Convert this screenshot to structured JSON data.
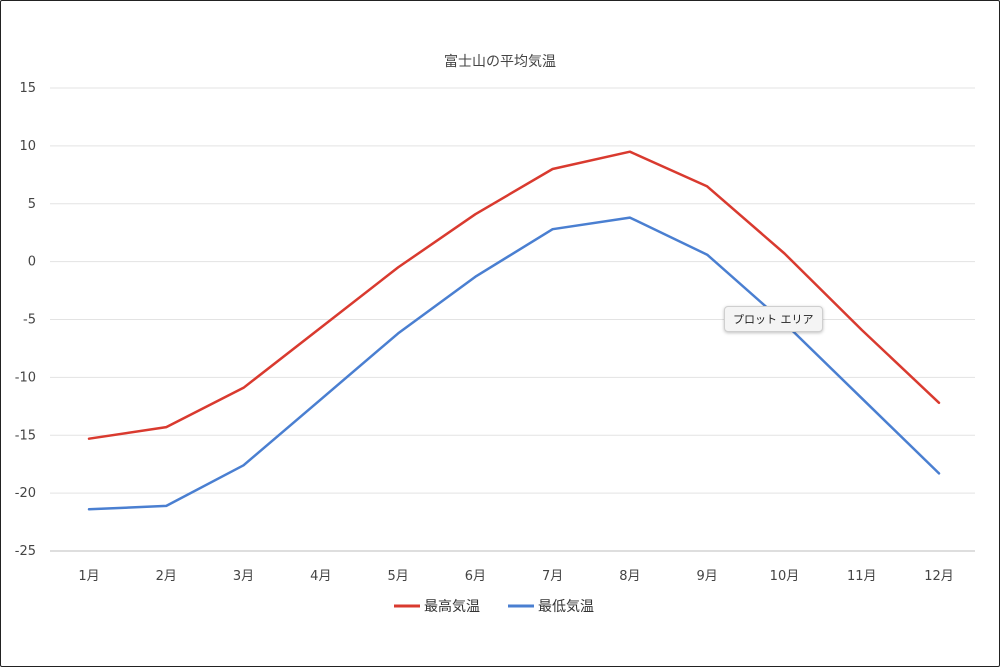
{
  "chart_data": {
    "type": "line",
    "title": "富士山の平均気温",
    "categories": [
      "1月",
      "2月",
      "3月",
      "4月",
      "5月",
      "6月",
      "7月",
      "8月",
      "9月",
      "10月",
      "11月",
      "12月"
    ],
    "series": [
      {
        "name": "最高気温",
        "color": "#d93a2f",
        "values": [
          -15.3,
          -14.3,
          -10.9,
          -5.7,
          -0.5,
          4.1,
          8.0,
          9.5,
          6.5,
          0.7,
          -5.9,
          -12.2
        ]
      },
      {
        "name": "最低気温",
        "color": "#4a7fd1",
        "values": [
          -21.4,
          -21.1,
          -17.6,
          -11.9,
          -6.2,
          -1.3,
          2.8,
          3.8,
          0.6,
          -5.3,
          -11.8,
          -18.3
        ]
      }
    ],
    "yticks": [
      15,
      10,
      5,
      0,
      -5,
      -10,
      -15,
      -20,
      -25
    ],
    "ylim": [
      -25,
      15
    ],
    "grid": true,
    "legend": "bottom"
  },
  "tooltip": {
    "label": "プロット エリア"
  }
}
